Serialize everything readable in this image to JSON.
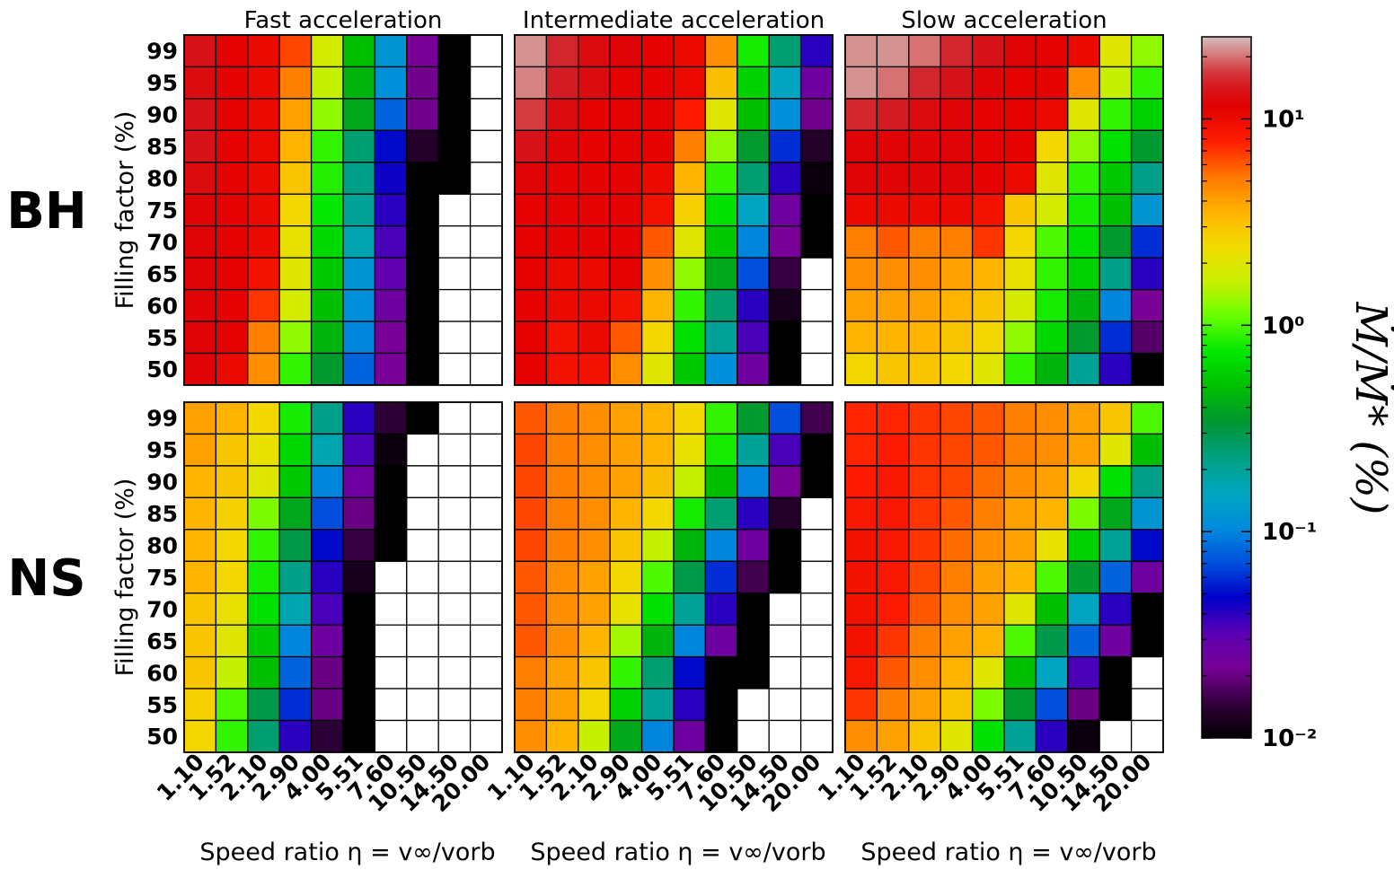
{
  "chart_data": {
    "type": "heatmap",
    "row_labels": [
      "BH",
      "NS"
    ],
    "column_titles": [
      "Fast acceleration",
      "Intermediate acceleration",
      "Slow acceleration"
    ],
    "xlabel": "Speed ratio η = v∞/vorb",
    "ylabel": "Filling factor (%)",
    "x_categories": [
      "1.10",
      "1.52",
      "2.10",
      "2.90",
      "4.00",
      "5.51",
      "7.60",
      "10.50",
      "14.50",
      "20.00"
    ],
    "y_categories": [
      "99",
      "95",
      "90",
      "85",
      "80",
      "75",
      "70",
      "65",
      "60",
      "55",
      "50"
    ],
    "colorbar": {
      "label": "Ṁ/Ṁ* (%)",
      "scale": "log",
      "range": [
        0.01,
        25
      ],
      "tick_labels": [
        "10¹",
        "10⁰",
        "10⁻¹",
        "10⁻²"
      ],
      "tick_values": [
        10,
        1,
        0.1,
        0.01
      ]
    },
    "note_values": "Values are Ṁ/Ṁ* in percent; null = blank (white) cell; 0.01 = black floor",
    "panels": [
      {
        "row": "BH",
        "column": "Fast acceleration",
        "values": [
          [
            14,
            11,
            10,
            6.5,
            1.8,
            0.5,
            0.12,
            0.022,
            0.01,
            null
          ],
          [
            13,
            11,
            10,
            5.0,
            1.6,
            0.45,
            0.11,
            0.021,
            0.01,
            null
          ],
          [
            14,
            11,
            10,
            4.0,
            1.3,
            0.4,
            0.08,
            0.021,
            0.01,
            null
          ],
          [
            14,
            11,
            10,
            3.5,
            0.9,
            0.25,
            0.05,
            0.013,
            0.01,
            null
          ],
          [
            13,
            11,
            10,
            3.0,
            0.85,
            0.22,
            0.045,
            0.01,
            0.01,
            null
          ],
          [
            12,
            11,
            10,
            2.5,
            0.75,
            0.2,
            0.04,
            0.01,
            null,
            null
          ],
          [
            12,
            11,
            10,
            2.2,
            0.65,
            0.17,
            0.035,
            0.01,
            null,
            null
          ],
          [
            12,
            11,
            9.0,
            2.0,
            0.55,
            0.12,
            0.03,
            0.01,
            null,
            null
          ],
          [
            12,
            11,
            7.0,
            1.8,
            0.5,
            0.11,
            0.025,
            0.01,
            null,
            null
          ],
          [
            12,
            11,
            5.0,
            1.3,
            0.45,
            0.1,
            0.022,
            0.01,
            null,
            null
          ],
          [
            12,
            10,
            4.5,
            0.9,
            0.35,
            0.08,
            0.022,
            0.01,
            null,
            null
          ]
        ]
      },
      {
        "row": "BH",
        "column": "Intermediate acceleration",
        "values": [
          [
            22,
            16,
            13,
            12,
            11,
            10,
            4.5,
            0.8,
            0.25,
            0.04
          ],
          [
            21,
            15,
            13,
            11,
            11,
            10,
            3.2,
            0.6,
            0.15,
            0.025
          ],
          [
            17,
            13,
            11,
            11,
            11,
            8.0,
            2.0,
            0.5,
            0.11,
            0.021
          ],
          [
            14,
            12,
            11,
            11,
            11,
            5.0,
            1.3,
            0.35,
            0.06,
            0.013
          ],
          [
            12,
            11,
            11,
            11,
            10,
            3.5,
            0.9,
            0.25,
            0.04,
            0.011
          ],
          [
            11,
            11,
            11,
            11,
            9.0,
            2.7,
            0.7,
            0.15,
            0.025,
            0.01
          ],
          [
            11,
            11,
            11,
            11,
            6.0,
            2.0,
            0.55,
            0.1,
            0.022,
            0.01
          ],
          [
            11,
            10,
            10,
            11,
            4.5,
            1.3,
            0.4,
            0.07,
            0.015,
            null
          ],
          [
            11,
            10,
            10,
            9.0,
            3.5,
            0.9,
            0.25,
            0.04,
            0.012,
            null
          ],
          [
            11,
            9.0,
            10,
            6.0,
            2.5,
            0.7,
            0.2,
            0.035,
            0.01,
            null
          ],
          [
            11,
            9.0,
            9.0,
            4.5,
            2.0,
            0.55,
            0.11,
            0.025,
            0.01,
            null
          ]
        ]
      },
      {
        "row": "BH",
        "column": "Slow acceleration",
        "values": [
          [
            22,
            22,
            20,
            16,
            14,
            12,
            11,
            10,
            2.0,
            1.3
          ],
          [
            22,
            20,
            16,
            14,
            12,
            11,
            11,
            4.5,
            1.6,
            0.9
          ],
          [
            16,
            15,
            13,
            12,
            11,
            11,
            10,
            2.0,
            0.9,
            0.6
          ],
          [
            12,
            12,
            12,
            12,
            11,
            11,
            2.5,
            1.3,
            0.7,
            0.35
          ],
          [
            12,
            12,
            12,
            12,
            11,
            10,
            2.0,
            0.9,
            0.55,
            0.22
          ],
          [
            10,
            10,
            10,
            10,
            9.0,
            3.0,
            1.8,
            0.8,
            0.5,
            0.12
          ],
          [
            5.0,
            6.0,
            5.0,
            5.0,
            7.0,
            2.5,
            1.0,
            0.7,
            0.35,
            0.06
          ],
          [
            4.5,
            4.5,
            4.5,
            4.0,
            3.5,
            2.2,
            0.9,
            0.6,
            0.22,
            0.04
          ],
          [
            4.0,
            4.0,
            4.0,
            3.5,
            3.0,
            1.8,
            0.8,
            0.45,
            0.1,
            0.022
          ],
          [
            3.5,
            3.5,
            3.5,
            3.0,
            2.5,
            1.3,
            0.65,
            0.35,
            0.06,
            0.018
          ],
          [
            2.5,
            3.0,
            3.0,
            2.5,
            2.0,
            0.9,
            0.45,
            0.2,
            0.04,
            0.01
          ]
        ]
      },
      {
        "row": "NS",
        "column": "Fast acceleration",
        "values": [
          [
            4.0,
            3.5,
            2.5,
            0.8,
            0.22,
            0.04,
            0.014,
            0.01,
            null,
            null
          ],
          [
            4.0,
            3.0,
            2.2,
            0.65,
            0.17,
            0.035,
            0.011,
            null,
            null,
            null
          ],
          [
            3.5,
            3.0,
            2.0,
            0.55,
            0.1,
            0.025,
            0.01,
            null,
            null,
            null
          ],
          [
            3.5,
            2.7,
            1.2,
            0.4,
            0.07,
            0.02,
            0.01,
            null,
            null,
            null
          ],
          [
            3.5,
            2.5,
            0.9,
            0.3,
            0.05,
            0.015,
            0.01,
            null,
            null,
            null
          ],
          [
            3.5,
            2.5,
            0.8,
            0.22,
            0.04,
            0.012,
            null,
            null,
            null,
            null
          ],
          [
            3.0,
            2.2,
            0.7,
            0.17,
            0.035,
            0.01,
            null,
            null,
            null,
            null
          ],
          [
            3.0,
            2.0,
            0.55,
            0.1,
            0.025,
            0.01,
            null,
            null,
            null,
            null
          ],
          [
            3.0,
            1.6,
            0.5,
            0.08,
            0.02,
            0.01,
            null,
            null,
            null,
            null
          ],
          [
            2.7,
            1.0,
            0.3,
            0.06,
            0.02,
            0.01,
            null,
            null,
            null,
            null
          ],
          [
            2.5,
            0.9,
            0.25,
            0.04,
            0.014,
            0.01,
            null,
            null,
            null,
            null
          ]
        ]
      },
      {
        "row": "NS",
        "column": "Intermediate acceleration",
        "values": [
          [
            6.0,
            5.0,
            4.5,
            4.0,
            3.5,
            2.5,
            0.9,
            0.35,
            0.07,
            0.016
          ],
          [
            6.5,
            5.0,
            4.5,
            4.0,
            3.5,
            2.2,
            0.8,
            0.2,
            0.035,
            0.01
          ],
          [
            6.5,
            5.0,
            4.5,
            4.0,
            3.2,
            1.6,
            0.5,
            0.1,
            0.022,
            0.01
          ],
          [
            6.5,
            5.0,
            4.5,
            3.5,
            2.5,
            0.8,
            0.25,
            0.04,
            0.013,
            null
          ],
          [
            6.5,
            5.0,
            4.5,
            3.0,
            1.6,
            0.45,
            0.1,
            0.025,
            0.01,
            null
          ],
          [
            6.0,
            4.5,
            4.0,
            2.5,
            1.0,
            0.3,
            0.06,
            0.016,
            0.01,
            null
          ],
          [
            6.0,
            4.5,
            4.0,
            2.2,
            0.7,
            0.2,
            0.04,
            0.01,
            null,
            null
          ],
          [
            6.0,
            4.5,
            3.5,
            1.4,
            0.45,
            0.1,
            0.025,
            0.01,
            null,
            null
          ],
          [
            5.0,
            4.0,
            3.0,
            0.9,
            0.25,
            0.05,
            0.01,
            0.01,
            null,
            null
          ],
          [
            5.0,
            4.0,
            2.5,
            0.6,
            0.2,
            0.04,
            0.01,
            null,
            null,
            null
          ],
          [
            4.5,
            3.5,
            1.6,
            0.4,
            0.1,
            0.025,
            0.01,
            null,
            null,
            null
          ]
        ]
      },
      {
        "row": "NS",
        "column": "Slow acceleration",
        "values": [
          [
            7.5,
            7.5,
            7.0,
            6.5,
            6.0,
            5.0,
            4.5,
            4.0,
            3.0,
            1.0
          ],
          [
            7.5,
            8.0,
            7.0,
            6.5,
            6.0,
            5.0,
            4.5,
            4.0,
            2.0,
            0.5
          ],
          [
            8.0,
            8.5,
            7.0,
            6.5,
            5.5,
            4.5,
            4.0,
            2.5,
            0.7,
            0.22
          ],
          [
            8.5,
            8.5,
            7.0,
            6.0,
            5.0,
            4.0,
            3.5,
            1.2,
            0.4,
            0.12
          ],
          [
            9.0,
            8.5,
            7.0,
            5.5,
            4.5,
            4.0,
            2.2,
            0.6,
            0.2,
            0.05
          ],
          [
            9.0,
            8.5,
            6.5,
            5.0,
            4.0,
            3.5,
            1.0,
            0.35,
            0.08,
            0.025
          ],
          [
            9.0,
            8.0,
            6.0,
            4.5,
            4.0,
            2.0,
            0.5,
            0.15,
            0.04,
            0.01
          ],
          [
            9.0,
            7.0,
            5.0,
            4.0,
            3.5,
            1.0,
            0.3,
            0.08,
            0.025,
            0.01
          ],
          [
            8.5,
            6.0,
            4.5,
            3.5,
            2.0,
            0.5,
            0.15,
            0.035,
            0.01,
            null
          ],
          [
            7.0,
            5.0,
            4.0,
            3.0,
            1.2,
            0.35,
            0.07,
            0.02,
            0.01,
            null
          ],
          [
            4.5,
            4.0,
            3.0,
            2.0,
            0.7,
            0.2,
            0.04,
            0.011,
            null,
            null
          ]
        ]
      }
    ]
  }
}
